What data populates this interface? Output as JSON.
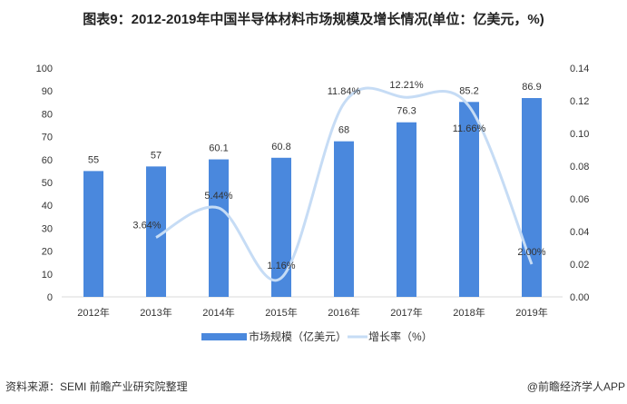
{
  "title": "图表9：2012-2019年中国半导体材料市场规模及增长情况(单位：亿美元，%)",
  "source": "资料来源：SEMI   前瞻产业研究院整理",
  "credit": "@前瞻经济学人APP",
  "chart_data": {
    "type": "bar+line",
    "categories": [
      "2012年",
      "2013年",
      "2014年",
      "2015年",
      "2016年",
      "2017年",
      "2018年",
      "2019年"
    ],
    "series": [
      {
        "name": "市场规模（亿美元）",
        "type": "bar",
        "axis": "left",
        "color": "#4a88dd",
        "values": [
          55,
          57,
          60.1,
          60.8,
          68,
          76.3,
          85.2,
          86.9
        ],
        "labels": [
          "55",
          "57",
          "60.1",
          "60.8",
          "68",
          "76.3",
          "85.2",
          "86.9"
        ]
      },
      {
        "name": "增长率（%）",
        "type": "line",
        "axis": "right",
        "color": "#c6dcf5",
        "values": [
          null,
          0.0364,
          0.0544,
          0.0116,
          0.1184,
          0.1221,
          0.1166,
          0.02
        ],
        "labels": [
          null,
          "3.64%",
          "5.44%",
          "1.16%",
          "11.84%",
          "12.21%",
          "11.66%",
          "2.00%"
        ]
      }
    ],
    "left_axis": {
      "ylim": [
        0,
        100
      ],
      "ticks": [
        "0",
        "10",
        "20",
        "30",
        "40",
        "50",
        "60",
        "70",
        "80",
        "90",
        "100"
      ]
    },
    "right_axis": {
      "ylim": [
        0,
        0.14
      ],
      "ticks": [
        "0.00",
        "0.02",
        "0.04",
        "0.06",
        "0.08",
        "0.10",
        "0.12",
        "0.14"
      ]
    },
    "legend": "bottom",
    "grid": false
  }
}
